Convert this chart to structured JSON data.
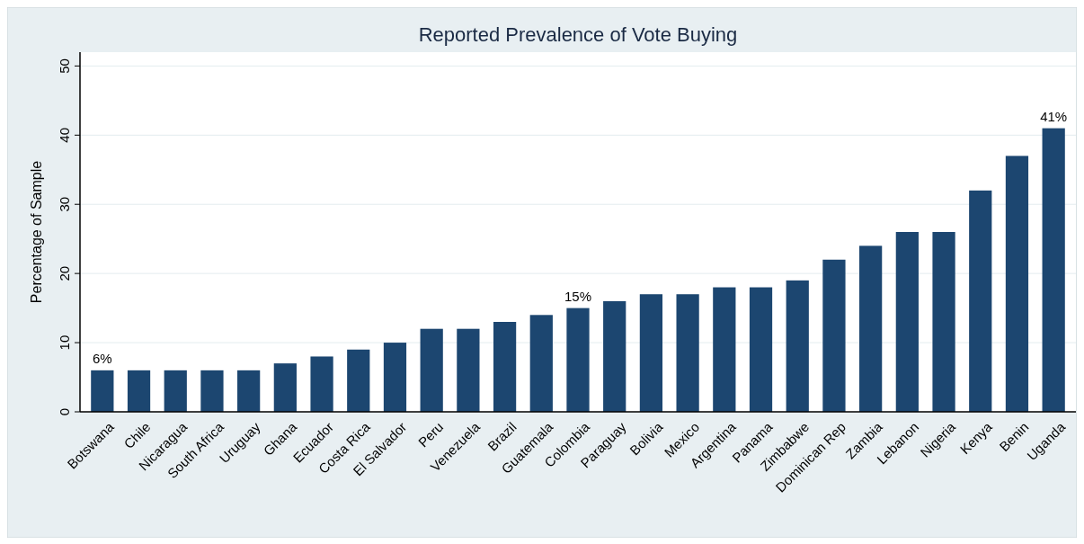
{
  "chart_data": {
    "type": "bar",
    "title": "Reported Prevalence of Vote Buying",
    "ylabel": "Percentage of Sample",
    "categories": [
      "Botswana",
      "Chile",
      "Nicaragua",
      "South Africa",
      "Uruguay",
      "Ghana",
      "Ecuador",
      "Costa Rica",
      "El Salvador",
      "Peru",
      "Venezuela",
      "Brazil",
      "Guatemala",
      "Colombia",
      "Paraguay",
      "Bolivia",
      "Mexico",
      "Argentina",
      "Panama",
      "Zimbabwe",
      "Dominican Rep",
      "Zambia",
      "Lebanon",
      "Nigeria",
      "Kenya",
      "Benin",
      "Uganda"
    ],
    "values": [
      6,
      6,
      6,
      6,
      6,
      7,
      8,
      9,
      10,
      12,
      12,
      13,
      14,
      15,
      16,
      17,
      17,
      18,
      18,
      19,
      22,
      24,
      26,
      26,
      32,
      37,
      41
    ],
    "value_labels": [
      "6%",
      null,
      null,
      null,
      null,
      null,
      null,
      null,
      null,
      null,
      null,
      null,
      null,
      "15%",
      null,
      null,
      null,
      null,
      null,
      null,
      null,
      null,
      null,
      null,
      null,
      null,
      "41%"
    ],
    "color": "#1c4670",
    "ylim": [
      0,
      52
    ],
    "yticks": [
      0,
      10,
      20,
      30,
      40,
      50
    ],
    "grid": "y"
  }
}
